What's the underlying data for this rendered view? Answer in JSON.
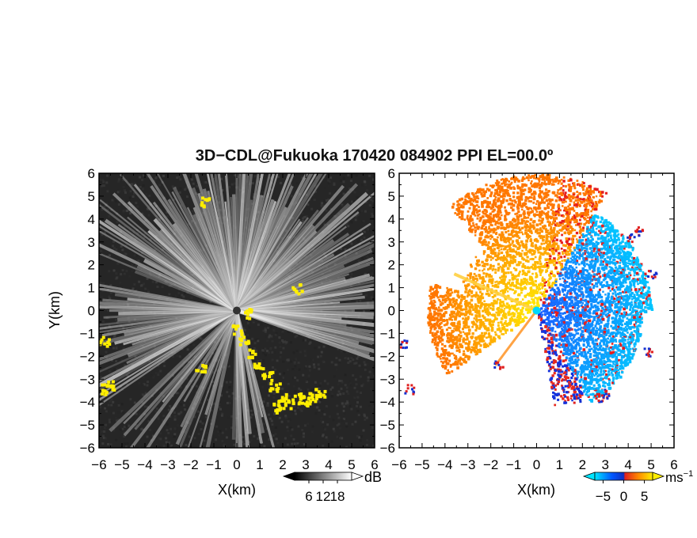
{
  "title": "3D−CDL@Fukuoka 170420 084902 PPI EL=00.0º",
  "chart_data": [
    {
      "type": "heatmap",
      "panel": "reflectivity",
      "xlabel": "X(km)",
      "ylabel": "Y(km)",
      "xlim": [
        -6,
        6
      ],
      "ylim": [
        -6,
        6
      ],
      "x_ticks": [
        "−6",
        "−5",
        "−4",
        "−3",
        "−2",
        "−1",
        "0",
        "1",
        "2",
        "3",
        "4",
        "5",
        "6"
      ],
      "y_ticks": [
        "−6",
        "−5",
        "−4",
        "−3",
        "−2",
        "−1",
        "0",
        "1",
        "2",
        "3",
        "4",
        "5",
        "6"
      ],
      "colorbar": {
        "unit": "dB",
        "ticks": [
          "6",
          "12",
          "18"
        ],
        "range": [
          0,
          24
        ],
        "colors": [
          "#000000",
          "#ffffff"
        ]
      },
      "background_color": "#262626",
      "highlight_color": "#ffee00",
      "blocked_sector_deg": [
        110,
        160
      ]
    },
    {
      "type": "heatmap",
      "panel": "doppler_velocity",
      "xlabel": "X(km)",
      "xlim": [
        -6,
        6
      ],
      "ylim": [
        -6,
        6
      ],
      "x_ticks": [
        "−6",
        "−5",
        "−4",
        "−3",
        "−2",
        "−1",
        "0",
        "1",
        "2",
        "3",
        "4",
        "5",
        "6"
      ],
      "y_ticks": [
        "−6",
        "−5",
        "−4",
        "−3",
        "−2",
        "−1",
        "0",
        "1",
        "2",
        "3",
        "4",
        "5",
        "6"
      ],
      "colorbar": {
        "unit_base": "ms",
        "unit_exp": "−1",
        "ticks": [
          "−5",
          "0",
          "5"
        ],
        "range": [
          -7,
          7
        ],
        "colors": [
          "#00e5ff",
          "#0055ff",
          "#1030c0",
          "#e02020",
          "#ff8800",
          "#ffee00"
        ]
      },
      "positive_color": "#ff8c00",
      "negative_color": "#1a6cff"
    }
  ]
}
